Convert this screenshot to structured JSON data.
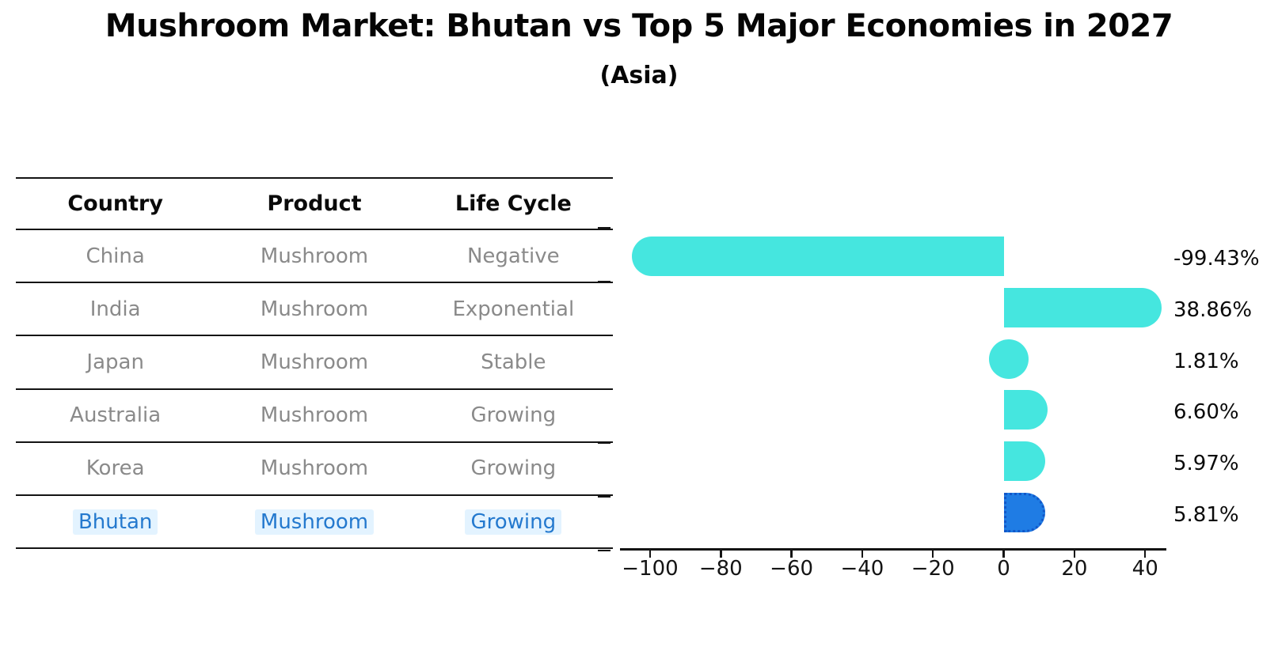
{
  "header": {
    "title": "Mushroom Market: Bhutan vs Top 5 Major Economies in 2027",
    "subtitle": "(Asia)"
  },
  "table": {
    "headers": [
      "Country",
      "Product",
      "Life Cycle"
    ],
    "rows": [
      {
        "country": "China",
        "product": "Mushroom",
        "life_cycle": "Negative",
        "highlight": false
      },
      {
        "country": "India",
        "product": "Mushroom",
        "life_cycle": "Exponential",
        "highlight": false
      },
      {
        "country": "Japan",
        "product": "Mushroom",
        "life_cycle": "Stable",
        "highlight": false
      },
      {
        "country": "Australia",
        "product": "Mushroom",
        "life_cycle": "Growing",
        "highlight": false
      },
      {
        "country": "Korea",
        "product": "Mushroom",
        "life_cycle": "Growing",
        "highlight": true
      }
    ],
    "highlight_row": {
      "country": "Bhutan",
      "product": "Mushroom",
      "life_cycle": "Growing"
    }
  },
  "chart_data": {
    "type": "bar",
    "orientation": "horizontal",
    "title": "Mushroom Market: Bhutan vs Top 5 Major Economies in 2027 (Asia)",
    "categories": [
      "China",
      "India",
      "Japan",
      "Australia",
      "Korea",
      "Bhutan"
    ],
    "values": [
      -99.43,
      38.86,
      1.81,
      6.6,
      5.97,
      5.81
    ],
    "value_labels": [
      "-99.43%",
      "38.86%",
      "1.81%",
      "6.60%",
      "5.97%",
      "5.81%"
    ],
    "unit": "%",
    "xticks": [
      -100,
      -80,
      -60,
      -40,
      -20,
      0,
      20,
      40
    ],
    "xlim": [
      -108.5,
      46
    ],
    "grid": false,
    "legend": null,
    "highlight_index": 5,
    "colors": {
      "bar": "#45e6df",
      "bar_highlight": "#1f7ce4",
      "bar_highlight_border": "#1157c9",
      "highlight_text": "#2479ce",
      "row_text": "#8a8a8a",
      "axis": "#141414"
    }
  }
}
